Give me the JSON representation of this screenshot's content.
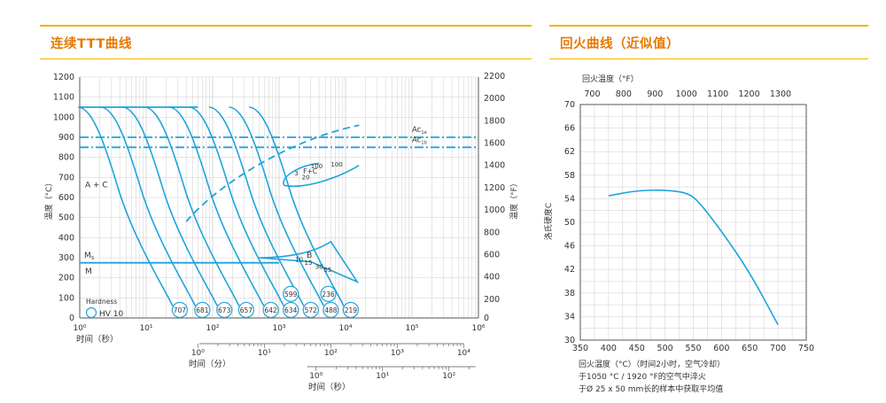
{
  "headers": {
    "left_title": "连续TTT曲线",
    "right_title": "回火曲线（近似值）"
  },
  "colors": {
    "accent_line": "#f5b300",
    "title": "#e67800",
    "curve": "#1ea4dc",
    "grid": "#d6d6d6",
    "axis": "#555555"
  },
  "chart_data": [
    {
      "type": "line",
      "title": "连续TTT曲线",
      "xscale": "log",
      "xlabel": "时间（秒）",
      "xlim": [
        1,
        1000000
      ],
      "xticks": [
        "10⁰",
        "10¹",
        "10²",
        "10³",
        "10⁴",
        "10⁵",
        "10⁶"
      ],
      "ylabel_left": "温度（°C）",
      "ylim_left": [
        0,
        1200
      ],
      "yticks_left": [
        "0",
        "100",
        "200",
        "300",
        "400",
        "500",
        "600",
        "700",
        "800",
        "900",
        "1000",
        "1100",
        "1200"
      ],
      "ylabel_right": "温度（°F）",
      "ylim_right": [
        0,
        2200
      ],
      "yticks_right": [
        "0",
        "200",
        "400",
        "600",
        "800",
        "1000",
        "1200",
        "1400",
        "1600",
        "1800",
        "2000",
        "2200"
      ],
      "secondary_axes": [
        {
          "label": "时间（分）",
          "ticks": [
            "10⁰",
            "10¹",
            "10²",
            "10³",
            "10⁴"
          ]
        },
        {
          "label": "时间（秒）",
          "ticks": [
            "10⁰",
            "10¹",
            "10²"
          ]
        }
      ],
      "reference_lines": [
        {
          "name": "Ac1e",
          "label": "Ac",
          "sub": "1e",
          "y": 900
        },
        {
          "name": "Ac1b",
          "label": "Ac",
          "sub": "1b",
          "y": 850
        }
      ],
      "start_temperature": 1050,
      "ms_temperature": 275,
      "region_labels": [
        {
          "text": "A + C"
        },
        {
          "text": "M",
          "sub": "S"
        },
        {
          "text": "M"
        },
        {
          "text": "B"
        },
        {
          "text": "F+C"
        }
      ],
      "region_percentages": {
        "bainite": [
          "10",
          "15",
          "30",
          "55"
        ],
        "ferrite": [
          "3",
          "20",
          "100",
          "100"
        ]
      },
      "cooling_curves_hv": [
        {
          "hv": 707,
          "end_time_s": 32
        },
        {
          "hv": 681,
          "end_time_s": 70
        },
        {
          "hv": 673,
          "end_time_s": 150
        },
        {
          "hv": 657,
          "end_time_s": 320
        },
        {
          "hv": 642,
          "end_time_s": 750
        },
        {
          "hv": 634,
          "end_time_s": 1500
        },
        {
          "hv": 572,
          "end_time_s": 3000
        },
        {
          "hv": 488,
          "end_time_s": 6000
        },
        {
          "hv": 219,
          "end_time_s": 12000
        }
      ],
      "extra_hv_labels": [
        {
          "hv": 599,
          "time_s": 1500,
          "temp": 120
        },
        {
          "hv": 236,
          "time_s": 5500,
          "temp": 120
        }
      ],
      "legend": {
        "title": "Hardness",
        "item": "HV 10"
      }
    },
    {
      "type": "line",
      "title": "回火曲线（近似值）",
      "xlabel": "回火温度（°C）（时间2小时，空气冷却）",
      "xlim": [
        350,
        750
      ],
      "xticks": [
        "350",
        "400",
        "450",
        "500",
        "550",
        "600",
        "650",
        "700",
        "750"
      ],
      "x2label": "回火温度（°F）",
      "x2ticks": [
        "700",
        "800",
        "900",
        "1000",
        "1100",
        "1200",
        "1300"
      ],
      "ylabel": "洛氏硬度C",
      "ylim": [
        30,
        70
      ],
      "yticks": [
        "30",
        "34",
        "38",
        "42",
        "46",
        "50",
        "54",
        "58",
        "62",
        "66",
        "70"
      ],
      "series": [
        {
          "x": [
            400,
            450,
            500,
            540,
            560,
            600,
            650,
            700
          ],
          "y": [
            54.5,
            55.4,
            55.5,
            55.0,
            53.5,
            48.5,
            41.5,
            32.6
          ]
        }
      ],
      "notes": [
        "于1050 °C / 1920 °F的空气中淬火",
        "于Ø 25 x 50 mm长的样本中获取平均值"
      ]
    }
  ]
}
